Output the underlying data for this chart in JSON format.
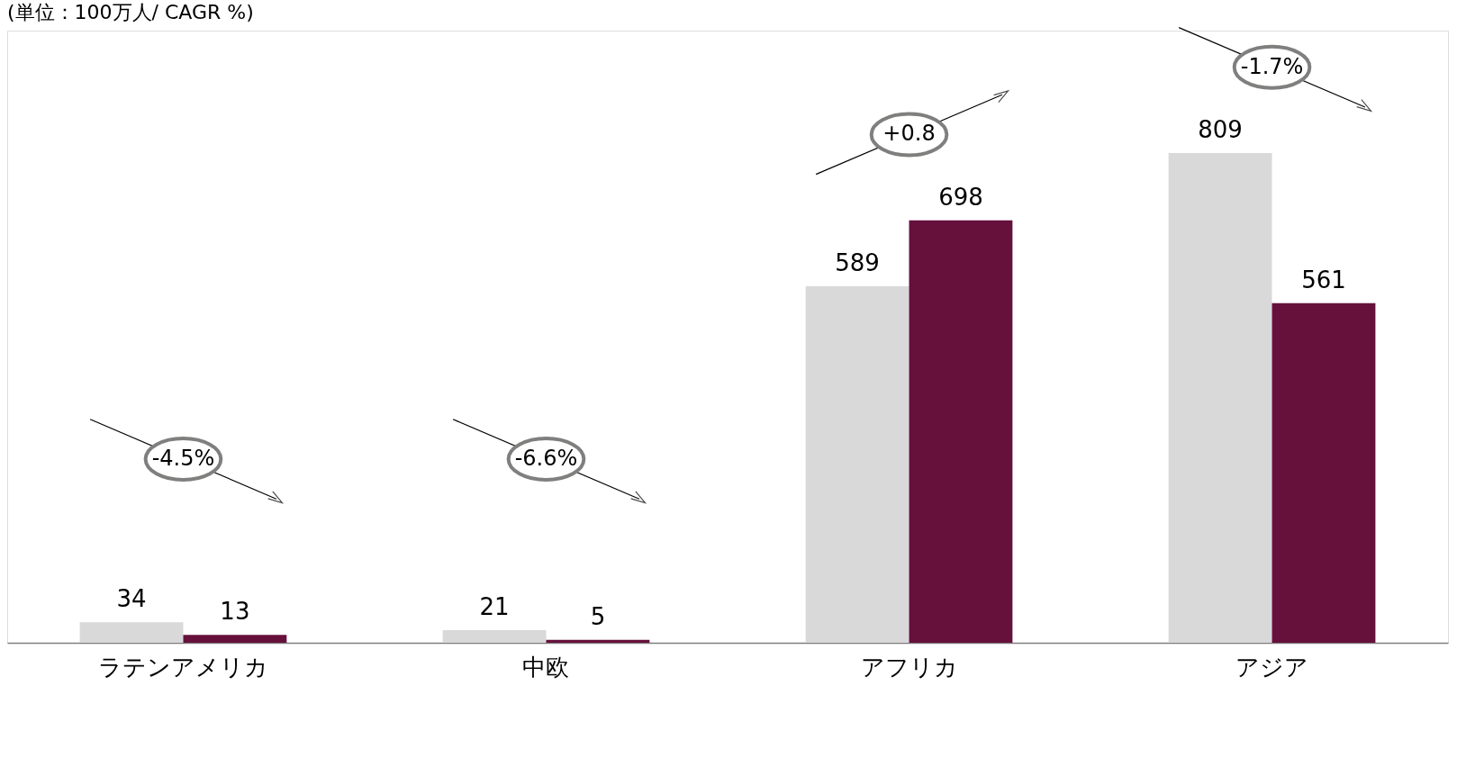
{
  "chart_data": {
    "type": "bar",
    "title": "(単位：100万人/ CAGR %)",
    "categories": [
      "ラテンアメリカ",
      "中欧",
      "アフリカ",
      "アジア"
    ],
    "series": [
      {
        "color": "#d9d9d9",
        "values": [
          34,
          21,
          589,
          809
        ]
      },
      {
        "color": "#66103c",
        "values": [
          13,
          5,
          698,
          561
        ]
      }
    ],
    "data_labels": true,
    "grid": false,
    "legend": false,
    "annotations": [
      "-4.5%",
      "-6.6%",
      "+0.8",
      "-1.7%"
    ]
  }
}
